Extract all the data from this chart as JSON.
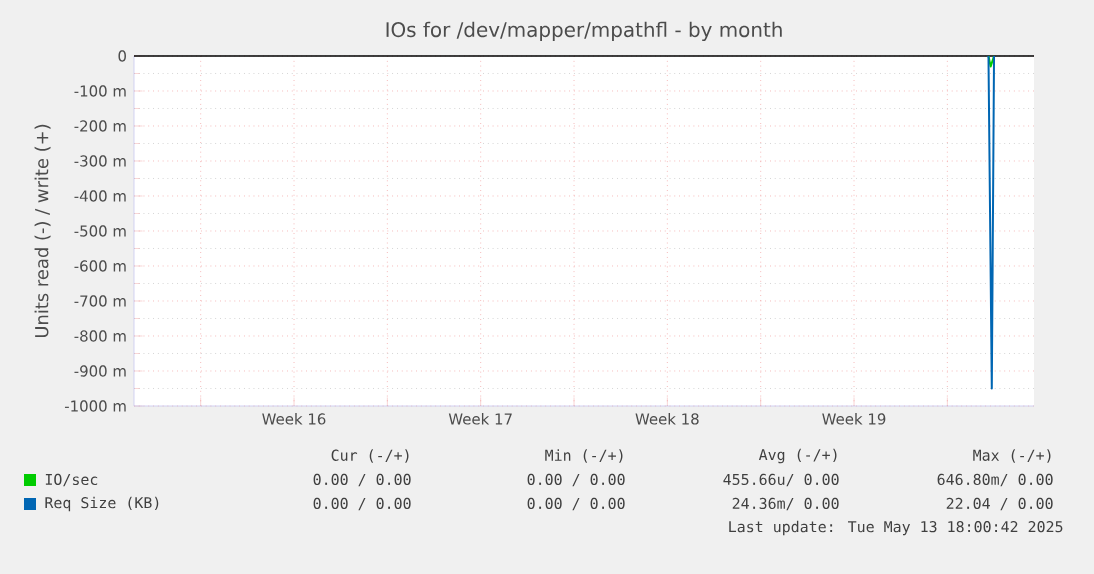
{
  "chart_data": {
    "type": "line",
    "title": "IOs for /dev/mapper/mpathfl - by month",
    "ylabel": "Units read (-) / write (+)",
    "xlim": [
      "2025-04-11T12:00",
      "2025-05-15T06:00"
    ],
    "xticks": [
      {
        "value": "2025-04-14T00:00",
        "label": null
      },
      {
        "value": "2025-04-17T12:00",
        "label": "Week 16"
      },
      {
        "value": "2025-04-21T00:00",
        "label": null
      },
      {
        "value": "2025-04-24T12:00",
        "label": "Week 17"
      },
      {
        "value": "2025-04-28T00:00",
        "label": null
      },
      {
        "value": "2025-05-01T12:00",
        "label": "Week 18"
      },
      {
        "value": "2025-05-05T00:00",
        "label": null
      },
      {
        "value": "2025-05-08T12:00",
        "label": "Week 19"
      },
      {
        "value": "2025-05-12T00:00",
        "label": null
      }
    ],
    "ylim": [
      -1000,
      0
    ],
    "yticks": [
      {
        "value": -1000,
        "label": "-1000 m"
      },
      {
        "value": -900,
        "label": "-900 m"
      },
      {
        "value": -800,
        "label": "-800 m"
      },
      {
        "value": -700,
        "label": "-700 m"
      },
      {
        "value": -600,
        "label": "-600 m"
      },
      {
        "value": -500,
        "label": "-500 m"
      },
      {
        "value": -400,
        "label": "-400 m"
      },
      {
        "value": -300,
        "label": "-300 m"
      },
      {
        "value": -200,
        "label": "-200 m"
      },
      {
        "value": -100,
        "label": "-100 m"
      },
      0
    ],
    "grid": true,
    "legend": "bottom left",
    "line_style": "solid",
    "series": [
      {
        "name": "IO/sec",
        "color": "#00cc00",
        "x": [
          "2025-05-13T13:00",
          "2025-05-13T15:00",
          "2025-05-13T18:00"
        ],
        "values": [
          0,
          -30,
          0
        ]
      },
      {
        "name": "Req Size (KB)",
        "color": "#0066b3",
        "x": [
          "2025-05-13T13:00",
          "2025-05-13T16:00",
          "2025-05-13T18:00"
        ],
        "values": [
          0,
          -950,
          0
        ]
      }
    ],
    "annotations": [
      "Cur (-/+)",
      "Min (-/+)",
      "Avg (-/+)",
      "Max (-/+)",
      "0.00 / 0.00",
      "0.00 / 0.00",
      "455.66u/ 0.00",
      "646.80m/ 0.00",
      "0.00 / 0.00",
      "0.00 / 0.00",
      "24.36m/ 0.00",
      "22.04 / 0.00",
      "Last update: Tue May 13 18:00:42 2025"
    ]
  }
}
